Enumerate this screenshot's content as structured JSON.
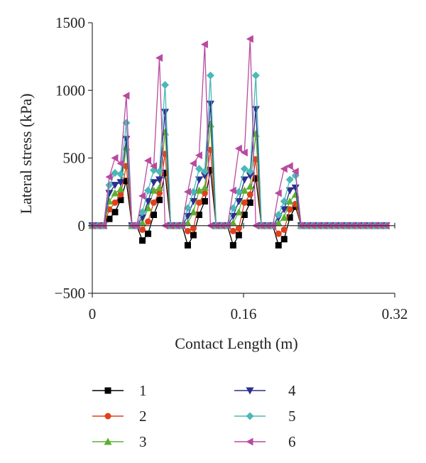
{
  "chart_data": {
    "type": "line",
    "title": "",
    "xlabel": "Contact Length (m)",
    "ylabel": "Lateral stress (kPa)",
    "xlim": [
      0,
      0.32
    ],
    "ylim": [
      -500,
      1500
    ],
    "xticks": [
      0,
      0.16,
      0.32
    ],
    "xtick_labels": [
      "0",
      "0.16",
      "0.32"
    ],
    "yticks": [
      -500,
      0,
      500,
      1000,
      1500
    ],
    "ytick_labels": [
      "−500",
      "0",
      "500",
      "1000",
      "1500"
    ],
    "grid": false,
    "legend_position": "bottom",
    "x": [
      0,
      0.006,
      0.012,
      0.018,
      0.024,
      0.03,
      0.036,
      0.042,
      0.047,
      0.053,
      0.059,
      0.065,
      0.071,
      0.077,
      0.083,
      0.089,
      0.095,
      0.101,
      0.107,
      0.113,
      0.119,
      0.125,
      0.131,
      0.137,
      0.143,
      0.149,
      0.155,
      0.161,
      0.167,
      0.173,
      0.179,
      0.185,
      0.191,
      0.197,
      0.203,
      0.209,
      0.215,
      0.221,
      0.227,
      0.233,
      0.239,
      0.245,
      0.251,
      0.257,
      0.263,
      0.269,
      0.275,
      0.281,
      0.287,
      0.293,
      0.299,
      0.305,
      0.311
    ],
    "series": [
      {
        "name": "1",
        "color": "#000000",
        "marker": "square",
        "values": [
          0,
          0,
          0,
          50,
          100,
          190,
          330,
          0,
          0,
          -110,
          -60,
          80,
          190,
          390,
          0,
          0,
          0,
          -145,
          -70,
          80,
          180,
          410,
          0,
          0,
          0,
          -145,
          -70,
          80,
          170,
          350,
          0,
          0,
          0,
          -145,
          -100,
          60,
          140,
          0,
          0,
          0,
          0,
          0,
          0,
          0,
          0,
          0,
          0,
          0,
          0,
          0,
          0,
          0,
          0
        ]
      },
      {
        "name": "2",
        "color": "#e0401c",
        "marker": "circle",
        "values": [
          0,
          0,
          0,
          120,
          170,
          230,
          440,
          0,
          0,
          -30,
          30,
          170,
          240,
          530,
          0,
          0,
          0,
          -40,
          -20,
          170,
          240,
          560,
          0,
          0,
          0,
          -40,
          -20,
          170,
          230,
          490,
          0,
          0,
          0,
          -60,
          -30,
          120,
          160,
          0,
          0,
          0,
          0,
          0,
          0,
          0,
          0,
          0,
          0,
          0,
          0,
          0,
          0,
          0,
          0
        ]
      },
      {
        "name": "3",
        "color": "#5cb030",
        "marker": "triangle",
        "values": [
          0,
          0,
          0,
          180,
          240,
          270,
          580,
          0,
          0,
          20,
          130,
          260,
          280,
          690,
          0,
          0,
          0,
          20,
          100,
          260,
          280,
          750,
          0,
          0,
          0,
          20,
          100,
          260,
          290,
          680,
          0,
          0,
          0,
          20,
          60,
          180,
          230,
          0,
          0,
          0,
          0,
          0,
          0,
          0,
          0,
          0,
          0,
          0,
          0,
          0,
          0,
          0,
          0
        ]
      },
      {
        "name": "4",
        "color": "#2a2e8c",
        "marker": "triangle-down",
        "values": [
          0,
          0,
          0,
          240,
          300,
          320,
          640,
          0,
          0,
          60,
          180,
          320,
          340,
          840,
          0,
          0,
          0,
          70,
          180,
          340,
          370,
          900,
          0,
          0,
          0,
          70,
          180,
          340,
          370,
          860,
          0,
          0,
          0,
          60,
          120,
          260,
          280,
          0,
          0,
          0,
          0,
          0,
          0,
          0,
          0,
          0,
          0,
          0,
          0,
          0,
          0,
          0,
          0
        ]
      },
      {
        "name": "5",
        "color": "#4ab8b8",
        "marker": "diamond",
        "values": [
          0,
          0,
          0,
          300,
          390,
          380,
          760,
          0,
          0,
          100,
          260,
          410,
          400,
          1040,
          0,
          0,
          0,
          130,
          250,
          420,
          400,
          1110,
          0,
          0,
          0,
          130,
          250,
          420,
          400,
          1110,
          0,
          0,
          0,
          80,
          180,
          340,
          370,
          0,
          0,
          0,
          0,
          0,
          0,
          0,
          0,
          0,
          0,
          0,
          0,
          0,
          0,
          0,
          0
        ]
      },
      {
        "name": "6",
        "color": "#b94aa0",
        "marker": "triangle-left",
        "values": [
          0,
          0,
          0,
          360,
          500,
          460,
          960,
          0,
          0,
          220,
          480,
          440,
          1240,
          0,
          0,
          0,
          0,
          250,
          460,
          520,
          1340,
          0,
          0,
          0,
          0,
          260,
          570,
          540,
          1380,
          0,
          0,
          0,
          0,
          240,
          420,
          440,
          400,
          0,
          0,
          0,
          0,
          0,
          0,
          0,
          0,
          0,
          0,
          0,
          0,
          0,
          0,
          0,
          0
        ]
      }
    ]
  }
}
